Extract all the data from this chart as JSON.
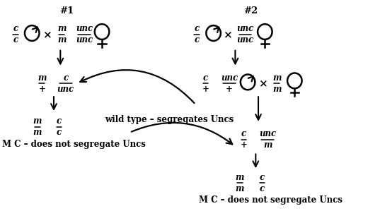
{
  "bg_color": "#ffffff",
  "fig_width": 5.2,
  "fig_height": 3.16,
  "dpi": 100,
  "title1": "#1",
  "title2": "#2",
  "label1_bottom": "M C – does not segregate Uncs",
  "label2_bottom": "M C – does not segregate Uncs",
  "wild_type_label": "wild type – segregates Uncs"
}
